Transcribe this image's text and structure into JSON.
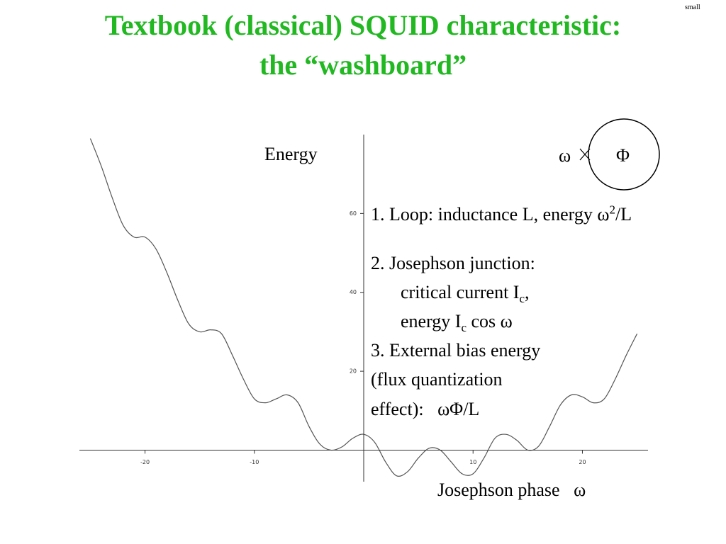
{
  "header": {
    "title_line1": "Textbook (classical) SQUID characteristic:",
    "title_line2": "the “washboard”",
    "corner_note": "small"
  },
  "chart_data": {
    "type": "line",
    "y_label": "Energy",
    "x_label": "Josephson phase   ω",
    "x": [
      -25,
      -24,
      -23,
      -22,
      -21,
      -20,
      -19,
      -18,
      -17,
      -16,
      -15,
      -14,
      -13,
      -12,
      -11,
      -10,
      -9,
      -8,
      -7,
      -6,
      -5,
      -4,
      -3,
      -2,
      -1,
      0,
      1,
      2,
      3,
      4,
      5,
      6,
      7,
      8,
      9,
      10,
      11,
      12,
      13,
      14,
      15,
      16,
      17,
      18,
      19,
      20,
      21,
      22,
      23,
      24,
      25
    ],
    "values": [
      79,
      72,
      64,
      57,
      54,
      54,
      51,
      45,
      38,
      32,
      30,
      30.5,
      29.5,
      24,
      18,
      13,
      12,
      13,
      14,
      12,
      6,
      1.5,
      0,
      0.8,
      3,
      4,
      2,
      -3,
      -6.5,
      -5.5,
      -2,
      0.5,
      0,
      -3,
      -6,
      -6,
      -2,
      3,
      4,
      2.5,
      0,
      1,
      6,
      11.5,
      14,
      13.5,
      12,
      13,
      18,
      24,
      29.5
    ],
    "color": "#555555",
    "xlim": [
      -26,
      26
    ],
    "ylim": [
      -8,
      80
    ],
    "xticks": [
      -20,
      -10,
      10,
      20
    ],
    "yticks": [
      20,
      40,
      60
    ]
  },
  "diagram": {
    "left": "ω",
    "right": "Φ"
  },
  "notes": {
    "item1": [
      "1. Loop: inductance L, energy ω",
      "2",
      "/L"
    ],
    "item2": [
      "2. Josephson junction:",
      "critical current I",
      "c",
      ",",
      "energy I",
      "c",
      " cos ω"
    ],
    "item3": [
      "3. External bias energy",
      "(flux quantization",
      "effect):   ωΦ/L"
    ]
  }
}
